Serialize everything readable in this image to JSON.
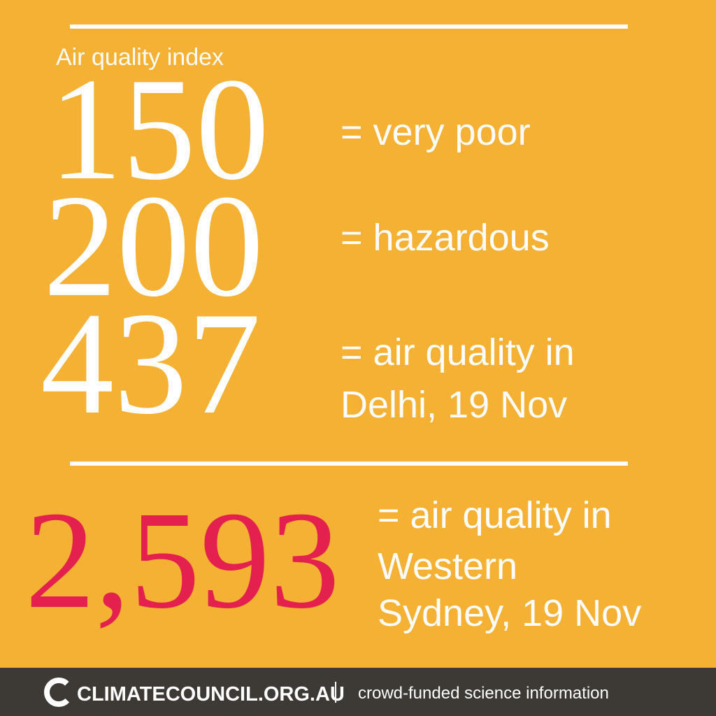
{
  "header": {
    "title": "Air quality index"
  },
  "rows": [
    {
      "value": "150",
      "description": [
        "= very poor"
      ]
    },
    {
      "value": "200",
      "description": [
        "= hazardous"
      ]
    },
    {
      "value": "437",
      "description": [
        "= air quality in",
        "Delhi, 19 Nov"
      ]
    }
  ],
  "highlight": {
    "value": "2,593",
    "description": [
      "= air quality in",
      "Western",
      "Sydney, 19 Nov"
    ]
  },
  "footer": {
    "brand": "CLIMATECOUNCIL.ORG.AU",
    "tagline": "crowd-funded science information"
  }
}
